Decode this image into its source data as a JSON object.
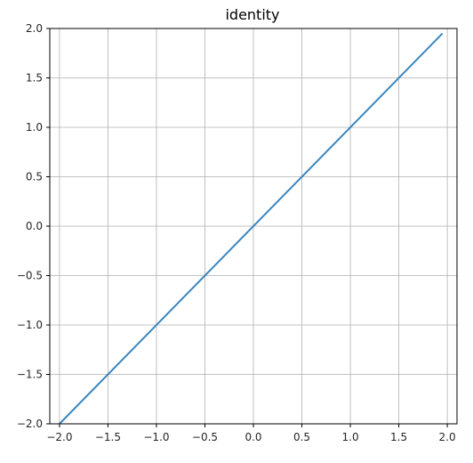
{
  "chart_data": {
    "type": "line",
    "title": "identity",
    "xlabel": "",
    "ylabel": "",
    "xlim": [
      -2.1,
      2.1
    ],
    "ylim": [
      -2.0,
      2.0
    ],
    "grid": true,
    "x_ticks": [
      -2.0,
      -1.5,
      -1.0,
      -0.5,
      0.0,
      0.5,
      1.0,
      1.5,
      2.0
    ],
    "y_ticks": [
      -2.0,
      -1.5,
      -1.0,
      -0.5,
      0.0,
      0.5,
      1.0,
      1.5,
      2.0
    ],
    "x_tick_labels": [
      "−2.0",
      "−1.5",
      "−1.0",
      "−0.5",
      "0.0",
      "0.5",
      "1.0",
      "1.5",
      "2.0"
    ],
    "y_tick_labels": [
      "−2.0",
      "−1.5",
      "−1.0",
      "−0.5",
      "0.0",
      "0.5",
      "1.0",
      "1.5",
      "2.0"
    ],
    "series": [
      {
        "name": "identity",
        "color": "#3b86be",
        "x": [
          -2.0,
          1.95
        ],
        "y": [
          -2.0,
          1.95
        ]
      }
    ]
  }
}
